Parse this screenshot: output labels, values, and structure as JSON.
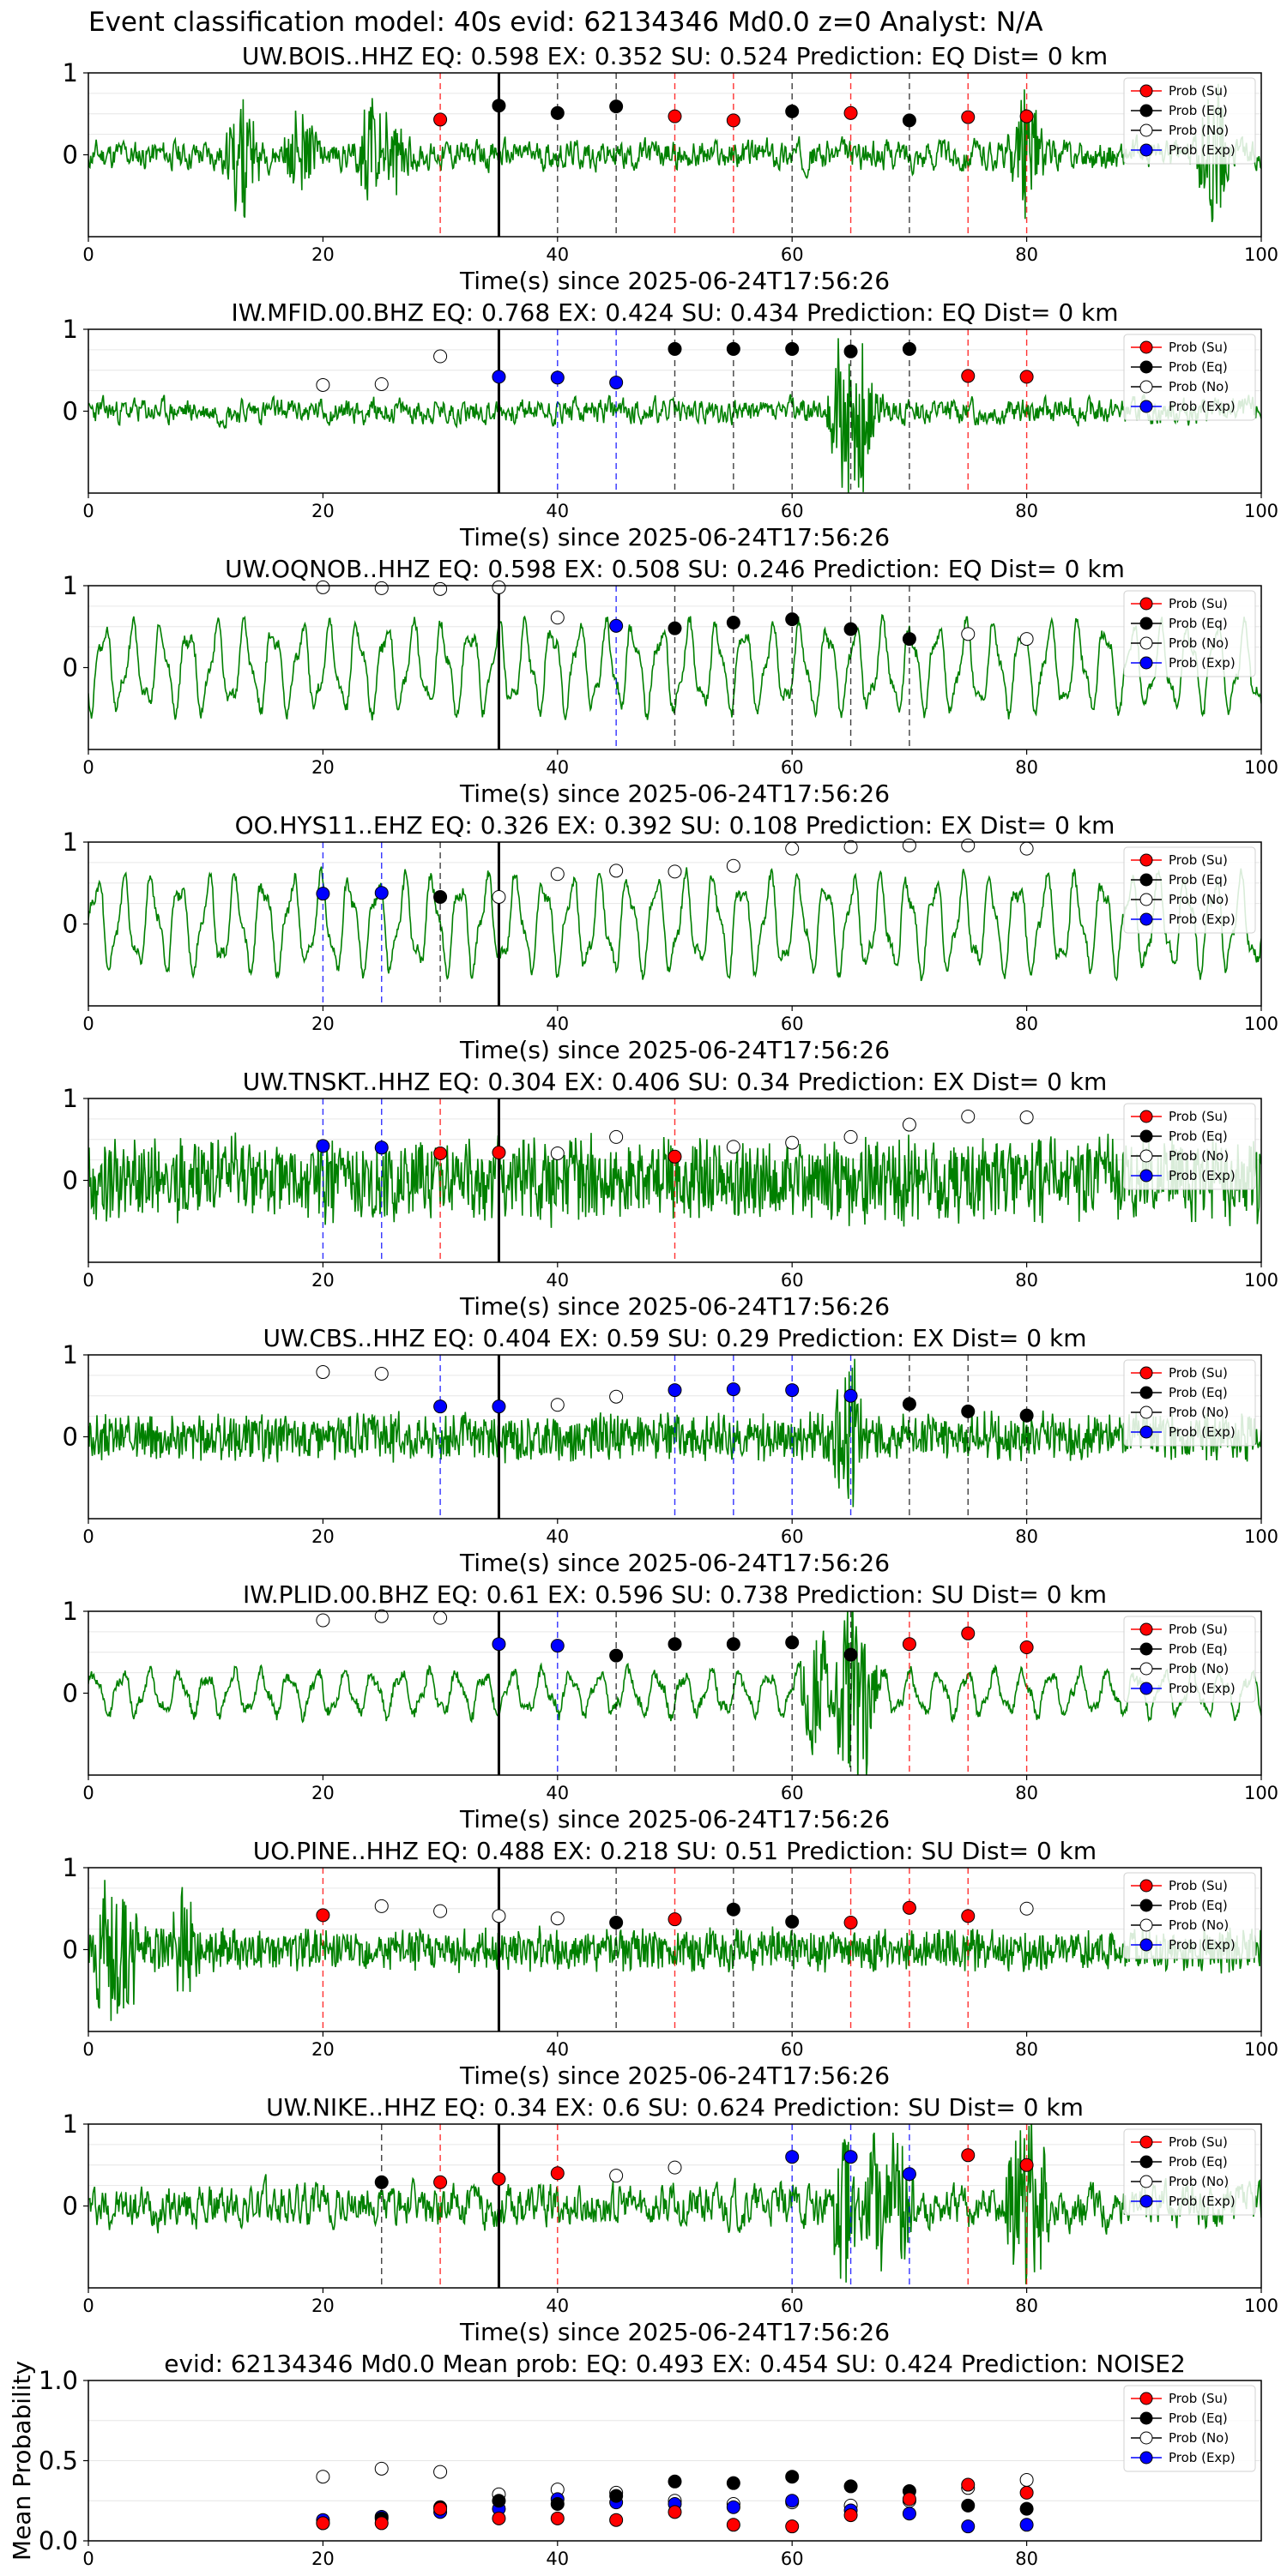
{
  "suptitle": "Event classification model: 40s evid: 62134346 Md0.0 z=0 Analyst: N/A",
  "legend_labels": [
    "Prob (Su)",
    "Prob (Eq)",
    "Prob (No)",
    "Prob (Exp)"
  ],
  "colors": {
    "su": "#ff0000",
    "eq": "#000000",
    "no": "#ffffff",
    "exp": "#0000ff",
    "waveform": "#008000",
    "marker_edge": "#000000",
    "grid": "#e6e6e6",
    "onset_line": "#000000"
  },
  "chart_data": [
    {
      "type": "line",
      "title": "UW.BOIS..HHZ   EQ: 0.598  EX: 0.352  SU: 0.524   Prediction: EQ    Dist= 0 km",
      "xlabel": "Time(s) since 2025-06-24T17:56:26",
      "ylabel": "",
      "xlim": [
        0,
        100
      ],
      "ylim": [
        -1,
        1
      ],
      "xticks": [
        0,
        20,
        40,
        60,
        80,
        100
      ],
      "yticks": [
        0,
        1
      ],
      "onset_x": 35,
      "waveform": {
        "style": "bursty",
        "amplitude": 0.14,
        "seed": 11,
        "bursts": [
          [
            13,
            0.7
          ],
          [
            18,
            0.5
          ],
          [
            24,
            0.6
          ],
          [
            26,
            0.4
          ],
          [
            80,
            0.7
          ],
          [
            96,
            0.8
          ]
        ]
      },
      "points": [
        {
          "x": 30,
          "class": "su",
          "y": 0.43
        },
        {
          "x": 35,
          "class": "eq",
          "y": 0.6
        },
        {
          "x": 40,
          "class": "eq",
          "y": 0.51
        },
        {
          "x": 45,
          "class": "eq",
          "y": 0.59
        },
        {
          "x": 50,
          "class": "su",
          "y": 0.47
        },
        {
          "x": 55,
          "class": "su",
          "y": 0.42
        },
        {
          "x": 60,
          "class": "eq",
          "y": 0.53
        },
        {
          "x": 65,
          "class": "su",
          "y": 0.51
        },
        {
          "x": 70,
          "class": "eq",
          "y": 0.42
        },
        {
          "x": 75,
          "class": "su",
          "y": 0.46
        },
        {
          "x": 80,
          "class": "su",
          "y": 0.47
        }
      ]
    },
    {
      "type": "line",
      "title": "IW.MFID.00.BHZ   EQ: 0.768  EX: 0.424  SU: 0.434   Prediction: EQ    Dist= 0 km",
      "xlabel": "Time(s) since 2025-06-24T17:56:26",
      "ylabel": "",
      "xlim": [
        0,
        100
      ],
      "ylim": [
        -1,
        1
      ],
      "xticks": [
        0,
        20,
        40,
        60,
        80,
        100
      ],
      "yticks": [
        0,
        1
      ],
      "onset_x": 35,
      "waveform": {
        "style": "bursty",
        "amplitude": 0.12,
        "seed": 23,
        "bursts": [
          [
            64.5,
            1.0
          ],
          [
            66,
            0.8
          ]
        ]
      },
      "points": [
        {
          "x": 20,
          "class": "no",
          "y": 0.32
        },
        {
          "x": 25,
          "class": "no",
          "y": 0.33
        },
        {
          "x": 30,
          "class": "no",
          "y": 0.67
        },
        {
          "x": 35,
          "class": "exp",
          "y": 0.42
        },
        {
          "x": 40,
          "class": "exp",
          "y": 0.41
        },
        {
          "x": 45,
          "class": "exp",
          "y": 0.35
        },
        {
          "x": 50,
          "class": "eq",
          "y": 0.76
        },
        {
          "x": 55,
          "class": "eq",
          "y": 0.76
        },
        {
          "x": 60,
          "class": "eq",
          "y": 0.76
        },
        {
          "x": 65,
          "class": "eq",
          "y": 0.73
        },
        {
          "x": 70,
          "class": "eq",
          "y": 0.76
        },
        {
          "x": 75,
          "class": "su",
          "y": 0.43
        },
        {
          "x": 80,
          "class": "su",
          "y": 0.42
        }
      ]
    },
    {
      "type": "line",
      "title": "UW.OQNOB..HHZ   EQ: 0.598  EX: 0.508  SU: 0.246   Prediction: EQ    Dist= 0 km",
      "xlabel": "Time(s) since 2025-06-24T17:56:26",
      "ylabel": "",
      "xlim": [
        0,
        100
      ],
      "ylim": [
        -1,
        1
      ],
      "xticks": [
        0,
        20,
        40,
        60,
        80,
        100
      ],
      "yticks": [
        0,
        1
      ],
      "onset_x": 35,
      "waveform": {
        "style": "wavy",
        "amplitude": 0.6,
        "seed": 37,
        "bursts": []
      },
      "points": [
        {
          "x": 20,
          "class": "no",
          "y": 0.98
        },
        {
          "x": 25,
          "class": "no",
          "y": 0.97
        },
        {
          "x": 30,
          "class": "no",
          "y": 0.96
        },
        {
          "x": 35,
          "class": "no",
          "y": 0.98
        },
        {
          "x": 40,
          "class": "no",
          "y": 0.61
        },
        {
          "x": 45,
          "class": "exp",
          "y": 0.51
        },
        {
          "x": 50,
          "class": "eq",
          "y": 0.48
        },
        {
          "x": 55,
          "class": "eq",
          "y": 0.55
        },
        {
          "x": 60,
          "class": "eq",
          "y": 0.59
        },
        {
          "x": 65,
          "class": "eq",
          "y": 0.47
        },
        {
          "x": 70,
          "class": "eq",
          "y": 0.35
        },
        {
          "x": 75,
          "class": "no",
          "y": 0.41
        },
        {
          "x": 80,
          "class": "no",
          "y": 0.35
        }
      ]
    },
    {
      "type": "line",
      "title": "OO.HYS11..EHZ   EQ: 0.326  EX: 0.392  SU: 0.108   Prediction: EX    Dist= 0 km",
      "xlabel": "Time(s) since 2025-06-24T17:56:26",
      "ylabel": "",
      "xlim": [
        0,
        100
      ],
      "ylim": [
        -1,
        1
      ],
      "xticks": [
        0,
        20,
        40,
        60,
        80,
        100
      ],
      "yticks": [
        0,
        1
      ],
      "onset_x": 35,
      "waveform": {
        "style": "wavy",
        "amplitude": 0.65,
        "seed": 41,
        "bursts": []
      },
      "points": [
        {
          "x": 20,
          "class": "exp",
          "y": 0.37
        },
        {
          "x": 25,
          "class": "exp",
          "y": 0.38
        },
        {
          "x": 30,
          "class": "eq",
          "y": 0.33
        },
        {
          "x": 35,
          "class": "no",
          "y": 0.33
        },
        {
          "x": 40,
          "class": "no",
          "y": 0.61
        },
        {
          "x": 45,
          "class": "no",
          "y": 0.65
        },
        {
          "x": 50,
          "class": "no",
          "y": 0.64
        },
        {
          "x": 55,
          "class": "no",
          "y": 0.71
        },
        {
          "x": 60,
          "class": "no",
          "y": 0.92
        },
        {
          "x": 65,
          "class": "no",
          "y": 0.94
        },
        {
          "x": 70,
          "class": "no",
          "y": 0.96
        },
        {
          "x": 75,
          "class": "no",
          "y": 0.96
        },
        {
          "x": 80,
          "class": "no",
          "y": 0.92
        }
      ]
    },
    {
      "type": "line",
      "title": "UW.TNSKT..HHZ   EQ: 0.304  EX: 0.406  SU: 0.34   Prediction: EX    Dist= 0 km",
      "xlabel": "Time(s) since 2025-06-24T17:56:26",
      "ylabel": "",
      "xlim": [
        0,
        100
      ],
      "ylim": [
        -1,
        1
      ],
      "xticks": [
        0,
        20,
        40,
        60,
        80,
        100
      ],
      "yticks": [
        0,
        1
      ],
      "onset_x": 35,
      "waveform": {
        "style": "noisy",
        "amplitude": 0.6,
        "seed": 53,
        "bursts": []
      },
      "points": [
        {
          "x": 20,
          "class": "exp",
          "y": 0.42
        },
        {
          "x": 25,
          "class": "exp",
          "y": 0.4
        },
        {
          "x": 30,
          "class": "su",
          "y": 0.33
        },
        {
          "x": 35,
          "class": "su",
          "y": 0.34
        },
        {
          "x": 40,
          "class": "no",
          "y": 0.33
        },
        {
          "x": 45,
          "class": "no",
          "y": 0.53
        },
        {
          "x": 50,
          "class": "su",
          "y": 0.29
        },
        {
          "x": 55,
          "class": "no",
          "y": 0.41
        },
        {
          "x": 60,
          "class": "no",
          "y": 0.46
        },
        {
          "x": 65,
          "class": "no",
          "y": 0.53
        },
        {
          "x": 70,
          "class": "no",
          "y": 0.68
        },
        {
          "x": 75,
          "class": "no",
          "y": 0.78
        },
        {
          "x": 80,
          "class": "no",
          "y": 0.77
        }
      ]
    },
    {
      "type": "line",
      "title": "UW.CBS..HHZ   EQ: 0.404  EX: 0.59  SU: 0.29   Prediction: EX    Dist= 0 km",
      "xlabel": "Time(s) since 2025-06-24T17:56:26",
      "ylabel": "",
      "xlim": [
        0,
        100
      ],
      "ylim": [
        -1,
        1
      ],
      "xticks": [
        0,
        20,
        40,
        60,
        80,
        100
      ],
      "yticks": [
        0,
        1
      ],
      "onset_x": 35,
      "waveform": {
        "style": "noisy",
        "amplitude": 0.33,
        "seed": 67,
        "bursts": [
          [
            64.8,
            1.0
          ]
        ]
      },
      "points": [
        {
          "x": 20,
          "class": "no",
          "y": 0.79
        },
        {
          "x": 25,
          "class": "no",
          "y": 0.77
        },
        {
          "x": 30,
          "class": "exp",
          "y": 0.37
        },
        {
          "x": 35,
          "class": "exp",
          "y": 0.37
        },
        {
          "x": 40,
          "class": "no",
          "y": 0.39
        },
        {
          "x": 45,
          "class": "no",
          "y": 0.49
        },
        {
          "x": 50,
          "class": "exp",
          "y": 0.57
        },
        {
          "x": 55,
          "class": "exp",
          "y": 0.58
        },
        {
          "x": 60,
          "class": "exp",
          "y": 0.57
        },
        {
          "x": 65,
          "class": "exp",
          "y": 0.5
        },
        {
          "x": 70,
          "class": "eq",
          "y": 0.4
        },
        {
          "x": 75,
          "class": "eq",
          "y": 0.31
        },
        {
          "x": 80,
          "class": "eq",
          "y": 0.26
        }
      ]
    },
    {
      "type": "line",
      "title": "IW.PLID.00.BHZ   EQ: 0.61  EX: 0.596  SU: 0.738   Prediction: SU    Dist= 0 km",
      "xlabel": "Time(s) since 2025-06-24T17:56:26",
      "ylabel": "",
      "xlim": [
        0,
        100
      ],
      "ylim": [
        -1,
        1
      ],
      "xticks": [
        0,
        20,
        40,
        60,
        80,
        100
      ],
      "yticks": [
        0,
        1
      ],
      "onset_x": 35,
      "waveform": {
        "style": "wavy",
        "amplitude": 0.3,
        "seed": 71,
        "bursts": [
          [
            62,
            0.7
          ],
          [
            64.8,
            1.0
          ],
          [
            66,
            0.8
          ]
        ]
      },
      "points": [
        {
          "x": 20,
          "class": "no",
          "y": 0.89
        },
        {
          "x": 25,
          "class": "no",
          "y": 0.94
        },
        {
          "x": 30,
          "class": "no",
          "y": 0.92
        },
        {
          "x": 35,
          "class": "exp",
          "y": 0.6
        },
        {
          "x": 40,
          "class": "exp",
          "y": 0.58
        },
        {
          "x": 45,
          "class": "eq",
          "y": 0.46
        },
        {
          "x": 50,
          "class": "eq",
          "y": 0.6
        },
        {
          "x": 55,
          "class": "eq",
          "y": 0.6
        },
        {
          "x": 60,
          "class": "eq",
          "y": 0.62
        },
        {
          "x": 65,
          "class": "eq",
          "y": 0.47
        },
        {
          "x": 70,
          "class": "su",
          "y": 0.6
        },
        {
          "x": 75,
          "class": "su",
          "y": 0.73
        },
        {
          "x": 80,
          "class": "su",
          "y": 0.56
        }
      ]
    },
    {
      "type": "line",
      "title": "UO.PINE..HHZ   EQ: 0.488  EX: 0.218  SU: 0.51   Prediction: SU    Dist= 0 km",
      "xlabel": "Time(s) since 2025-06-24T17:56:26",
      "ylabel": "",
      "xlim": [
        0,
        100
      ],
      "ylim": [
        -1,
        1
      ],
      "xticks": [
        0,
        20,
        40,
        60,
        80,
        100
      ],
      "yticks": [
        0,
        1
      ],
      "onset_x": 35,
      "waveform": {
        "style": "noisy",
        "amplitude": 0.3,
        "seed": 83,
        "bursts": [
          [
            1,
            0.8
          ],
          [
            3,
            1.0
          ],
          [
            8,
            0.6
          ]
        ]
      },
      "points": [
        {
          "x": 20,
          "class": "su",
          "y": 0.42
        },
        {
          "x": 25,
          "class": "no",
          "y": 0.53
        },
        {
          "x": 30,
          "class": "no",
          "y": 0.47
        },
        {
          "x": 35,
          "class": "no",
          "y": 0.41
        },
        {
          "x": 40,
          "class": "no",
          "y": 0.38
        },
        {
          "x": 45,
          "class": "eq",
          "y": 0.33
        },
        {
          "x": 50,
          "class": "su",
          "y": 0.37
        },
        {
          "x": 55,
          "class": "eq",
          "y": 0.49
        },
        {
          "x": 60,
          "class": "eq",
          "y": 0.34
        },
        {
          "x": 65,
          "class": "su",
          "y": 0.33
        },
        {
          "x": 70,
          "class": "su",
          "y": 0.51
        },
        {
          "x": 75,
          "class": "su",
          "y": 0.41
        },
        {
          "x": 80,
          "class": "no",
          "y": 0.5
        }
      ]
    },
    {
      "type": "line",
      "title": "UW.NIKE..HHZ   EQ: 0.34  EX: 0.6  SU: 0.624   Prediction: SU    Dist= 0 km",
      "xlabel": "Time(s) since 2025-06-24T17:56:26",
      "ylabel": "",
      "xlim": [
        0,
        100
      ],
      "ylim": [
        -1,
        1
      ],
      "xticks": [
        0,
        20,
        40,
        60,
        80,
        100
      ],
      "yticks": [
        0,
        1
      ],
      "onset_x": 35,
      "waveform": {
        "style": "bursty",
        "amplitude": 0.2,
        "seed": 97,
        "bursts": [
          [
            64.5,
            0.9
          ],
          [
            67,
            0.7
          ],
          [
            69,
            1.0
          ],
          [
            79.5,
            0.9
          ],
          [
            80.5,
            1.0
          ]
        ]
      },
      "points": [
        {
          "x": 25,
          "class": "eq",
          "y": 0.29
        },
        {
          "x": 30,
          "class": "su",
          "y": 0.29
        },
        {
          "x": 35,
          "class": "su",
          "y": 0.33
        },
        {
          "x": 40,
          "class": "su",
          "y": 0.4
        },
        {
          "x": 45,
          "class": "no",
          "y": 0.37
        },
        {
          "x": 50,
          "class": "no",
          "y": 0.47
        },
        {
          "x": 60,
          "class": "exp",
          "y": 0.6
        },
        {
          "x": 65,
          "class": "exp",
          "y": 0.6
        },
        {
          "x": 70,
          "class": "exp",
          "y": 0.39
        },
        {
          "x": 75,
          "class": "su",
          "y": 0.62
        },
        {
          "x": 80,
          "class": "su",
          "y": 0.5
        }
      ]
    },
    {
      "type": "scatter",
      "title": "evid: 62134346  Md0.0   Mean prob:    EQ: 0.493  EX: 0.454  SU: 0.424   Prediction: NOISE2",
      "xlabel": "",
      "ylabel": "Mean Probability",
      "xlim": [
        0,
        100
      ],
      "ylim": [
        0,
        1
      ],
      "xticks": [
        0,
        20,
        40,
        60,
        80
      ],
      "yticks": [
        0.0,
        0.5,
        1.0
      ],
      "ytick_labels": [
        "0.0",
        "0.5",
        "1.0"
      ],
      "x": [
        20,
        25,
        30,
        35,
        40,
        45,
        50,
        55,
        60,
        65,
        70,
        75,
        80
      ],
      "series": [
        {
          "class": "no",
          "values": [
            0.4,
            0.45,
            0.43,
            0.29,
            0.32,
            0.3,
            0.25,
            0.23,
            0.24,
            0.22,
            0.25,
            0.33,
            0.38
          ]
        },
        {
          "class": "exp",
          "values": [
            0.13,
            0.15,
            0.18,
            0.2,
            0.26,
            0.24,
            0.23,
            0.21,
            0.25,
            0.19,
            0.17,
            0.09,
            0.1
          ]
        },
        {
          "class": "eq",
          "values": [
            0.11,
            0.14,
            0.21,
            0.25,
            0.23,
            0.28,
            0.37,
            0.36,
            0.4,
            0.34,
            0.31,
            0.22,
            0.2
          ]
        },
        {
          "class": "su",
          "values": [
            0.11,
            0.11,
            0.2,
            0.14,
            0.14,
            0.13,
            0.18,
            0.1,
            0.09,
            0.16,
            0.26,
            0.35,
            0.3
          ]
        }
      ]
    }
  ]
}
